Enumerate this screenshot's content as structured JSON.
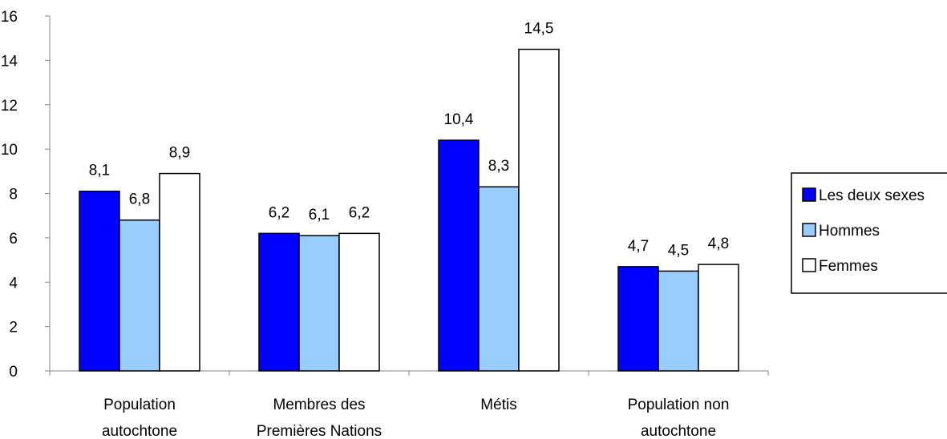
{
  "chart_data": {
    "type": "bar",
    "title": "",
    "xlabel": "",
    "ylabel": "",
    "ylim": [
      0,
      16
    ],
    "yticks": [
      0,
      2,
      4,
      6,
      8,
      10,
      12,
      14,
      16
    ],
    "grid": false,
    "legend_position": "right",
    "categories": [
      [
        "Population",
        "autochtone"
      ],
      [
        "Membres des",
        "Premières Nations"
      ],
      [
        "Métis"
      ],
      [
        "Population non",
        "autochtone"
      ]
    ],
    "series": [
      {
        "name": "Les deux sexes",
        "color": "#0000ff",
        "values": [
          8.1,
          6.2,
          10.4,
          4.7
        ],
        "labels": [
          "8,1",
          "6,2",
          "10,4",
          "4,7"
        ]
      },
      {
        "name": "Hommes",
        "color": "#99ccff",
        "values": [
          6.8,
          6.1,
          8.3,
          4.5
        ],
        "labels": [
          "6,8",
          "6,1",
          "8,3",
          "4,5"
        ]
      },
      {
        "name": "Femmes",
        "color": "#ffffff",
        "values": [
          8.9,
          6.2,
          14.5,
          4.8
        ],
        "labels": [
          "8,9",
          "6,2",
          "14,5",
          "4,8"
        ]
      }
    ]
  }
}
